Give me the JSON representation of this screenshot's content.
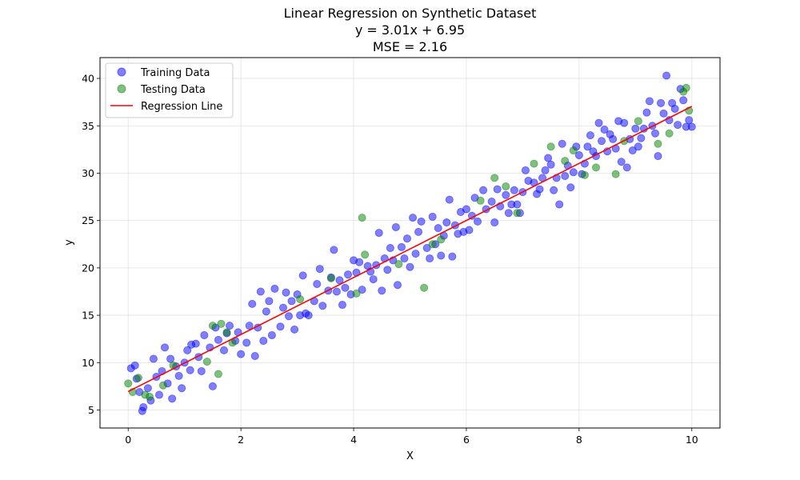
{
  "chart_data": {
    "type": "scatter",
    "title_lines": [
      "Linear Regression on Synthetic Dataset",
      "y = 3.01x + 6.95",
      "MSE = 2.16"
    ],
    "xlabel": "X",
    "ylabel": "y",
    "xlim": [
      -0.5,
      10.5
    ],
    "ylim": [
      3.1,
      42.2
    ],
    "xticks": [
      0,
      2,
      4,
      6,
      8,
      10
    ],
    "yticks": [
      5,
      10,
      15,
      20,
      25,
      30,
      35,
      40
    ],
    "grid": true,
    "legend_position": "upper-left",
    "regression": {
      "slope": 3.01,
      "intercept": 6.95,
      "x_range": [
        0,
        10
      ]
    },
    "series": [
      {
        "name": "Training Data",
        "kind": "scatter",
        "color": "#0000ff",
        "points": [
          [
            0.05,
            9.4
          ],
          [
            0.12,
            9.7
          ],
          [
            0.15,
            8.3
          ],
          [
            0.2,
            6.9
          ],
          [
            0.25,
            4.9
          ],
          [
            0.27,
            5.3
          ],
          [
            0.35,
            7.3
          ],
          [
            0.4,
            6.0
          ],
          [
            0.45,
            10.4
          ],
          [
            0.5,
            8.5
          ],
          [
            0.55,
            6.6
          ],
          [
            0.6,
            9.1
          ],
          [
            0.65,
            11.6
          ],
          [
            0.7,
            7.8
          ],
          [
            0.75,
            10.4
          ],
          [
            0.78,
            6.2
          ],
          [
            0.85,
            9.6
          ],
          [
            0.9,
            8.6
          ],
          [
            0.95,
            7.3
          ],
          [
            1.0,
            10.0
          ],
          [
            1.05,
            11.3
          ],
          [
            1.1,
            9.2
          ],
          [
            1.12,
            11.9
          ],
          [
            1.2,
            12.0
          ],
          [
            1.25,
            10.6
          ],
          [
            1.3,
            9.1
          ],
          [
            1.35,
            12.9
          ],
          [
            1.45,
            11.6
          ],
          [
            1.5,
            7.5
          ],
          [
            1.55,
            13.7
          ],
          [
            1.6,
            12.4
          ],
          [
            1.7,
            11.3
          ],
          [
            1.75,
            13.1
          ],
          [
            1.8,
            13.9
          ],
          [
            1.9,
            12.3
          ],
          [
            1.95,
            13.2
          ],
          [
            2.0,
            10.9
          ],
          [
            2.1,
            12.1
          ],
          [
            2.15,
            13.9
          ],
          [
            2.2,
            16.2
          ],
          [
            2.25,
            10.7
          ],
          [
            2.3,
            13.7
          ],
          [
            2.35,
            17.5
          ],
          [
            2.4,
            12.3
          ],
          [
            2.45,
            15.4
          ],
          [
            2.5,
            16.5
          ],
          [
            2.55,
            12.9
          ],
          [
            2.6,
            17.8
          ],
          [
            2.7,
            13.8
          ],
          [
            2.75,
            15.8
          ],
          [
            2.8,
            17.4
          ],
          [
            2.85,
            14.9
          ],
          [
            2.9,
            16.5
          ],
          [
            2.95,
            13.5
          ],
          [
            3.0,
            17.2
          ],
          [
            3.05,
            15.0
          ],
          [
            3.1,
            19.2
          ],
          [
            3.15,
            15.2
          ],
          [
            3.2,
            15.0
          ],
          [
            3.3,
            16.5
          ],
          [
            3.35,
            18.3
          ],
          [
            3.4,
            19.9
          ],
          [
            3.45,
            16.0
          ],
          [
            3.55,
            17.6
          ],
          [
            3.6,
            19.0
          ],
          [
            3.65,
            21.9
          ],
          [
            3.7,
            17.5
          ],
          [
            3.75,
            18.7
          ],
          [
            3.8,
            16.1
          ],
          [
            3.85,
            17.9
          ],
          [
            3.9,
            19.3
          ],
          [
            3.95,
            17.2
          ],
          [
            4.0,
            20.8
          ],
          [
            4.05,
            19.5
          ],
          [
            4.1,
            20.6
          ],
          [
            4.15,
            17.7
          ],
          [
            4.25,
            20.2
          ],
          [
            4.3,
            19.6
          ],
          [
            4.35,
            18.8
          ],
          [
            4.4,
            20.3
          ],
          [
            4.45,
            23.7
          ],
          [
            4.5,
            17.6
          ],
          [
            4.55,
            21.0
          ],
          [
            4.6,
            19.8
          ],
          [
            4.65,
            22.1
          ],
          [
            4.7,
            20.8
          ],
          [
            4.75,
            24.3
          ],
          [
            4.78,
            18.2
          ],
          [
            4.85,
            22.2
          ],
          [
            4.9,
            21.0
          ],
          [
            4.95,
            23.1
          ],
          [
            5.0,
            20.1
          ],
          [
            5.05,
            25.3
          ],
          [
            5.1,
            21.5
          ],
          [
            5.15,
            23.8
          ],
          [
            5.2,
            24.9
          ],
          [
            5.3,
            22.1
          ],
          [
            5.35,
            21.0
          ],
          [
            5.4,
            25.4
          ],
          [
            5.45,
            22.5
          ],
          [
            5.5,
            24.2
          ],
          [
            5.55,
            21.3
          ],
          [
            5.6,
            23.4
          ],
          [
            5.65,
            24.8
          ],
          [
            5.7,
            27.2
          ],
          [
            5.75,
            21.2
          ],
          [
            5.8,
            24.5
          ],
          [
            5.85,
            23.6
          ],
          [
            5.9,
            25.9
          ],
          [
            5.95,
            23.8
          ],
          [
            6.0,
            26.2
          ],
          [
            6.05,
            24.0
          ],
          [
            6.1,
            25.5
          ],
          [
            6.15,
            27.4
          ],
          [
            6.2,
            24.9
          ],
          [
            6.3,
            28.2
          ],
          [
            6.35,
            26.2
          ],
          [
            6.45,
            27.0
          ],
          [
            6.5,
            24.8
          ],
          [
            6.55,
            28.3
          ],
          [
            6.6,
            26.5
          ],
          [
            6.7,
            27.7
          ],
          [
            6.75,
            25.8
          ],
          [
            6.8,
            26.7
          ],
          [
            6.85,
            28.2
          ],
          [
            6.9,
            26.7
          ],
          [
            6.95,
            25.8
          ],
          [
            7.0,
            28.0
          ],
          [
            7.05,
            30.3
          ],
          [
            7.1,
            29.2
          ],
          [
            7.2,
            29.0
          ],
          [
            7.25,
            27.8
          ],
          [
            7.3,
            28.3
          ],
          [
            7.35,
            29.5
          ],
          [
            7.4,
            30.3
          ],
          [
            7.45,
            31.6
          ],
          [
            7.5,
            30.9
          ],
          [
            7.55,
            28.2
          ],
          [
            7.6,
            29.5
          ],
          [
            7.65,
            26.7
          ],
          [
            7.7,
            33.1
          ],
          [
            7.75,
            29.7
          ],
          [
            7.8,
            30.8
          ],
          [
            7.85,
            28.5
          ],
          [
            7.9,
            30.1
          ],
          [
            7.95,
            32.8
          ],
          [
            8.0,
            31.9
          ],
          [
            8.05,
            29.9
          ],
          [
            8.1,
            31.0
          ],
          [
            8.15,
            32.8
          ],
          [
            8.2,
            34.0
          ],
          [
            8.25,
            32.3
          ],
          [
            8.3,
            31.8
          ],
          [
            8.35,
            35.3
          ],
          [
            8.4,
            33.4
          ],
          [
            8.45,
            34.6
          ],
          [
            8.5,
            32.3
          ],
          [
            8.55,
            34.1
          ],
          [
            8.6,
            33.6
          ],
          [
            8.65,
            32.6
          ],
          [
            8.7,
            35.5
          ],
          [
            8.75,
            31.2
          ],
          [
            8.8,
            35.3
          ],
          [
            8.85,
            30.6
          ],
          [
            8.9,
            33.6
          ],
          [
            8.95,
            32.4
          ],
          [
            9.0,
            34.7
          ],
          [
            9.05,
            32.8
          ],
          [
            9.1,
            33.7
          ],
          [
            9.15,
            34.7
          ],
          [
            9.2,
            36.4
          ],
          [
            9.25,
            37.6
          ],
          [
            9.3,
            35.0
          ],
          [
            9.35,
            34.2
          ],
          [
            9.4,
            31.8
          ],
          [
            9.45,
            37.4
          ],
          [
            9.5,
            36.3
          ],
          [
            9.55,
            40.3
          ],
          [
            9.6,
            35.6
          ],
          [
            9.65,
            37.4
          ],
          [
            9.7,
            36.8
          ],
          [
            9.75,
            35.1
          ],
          [
            9.8,
            38.9
          ],
          [
            9.85,
            37.7
          ],
          [
            9.9,
            34.9
          ],
          [
            9.95,
            35.6
          ],
          [
            10.0,
            34.9
          ]
        ]
      },
      {
        "name": "Testing Data",
        "kind": "scatter",
        "color": "#008000",
        "points": [
          [
            0.0,
            7.8
          ],
          [
            0.08,
            6.9
          ],
          [
            0.18,
            8.4
          ],
          [
            0.3,
            6.6
          ],
          [
            0.38,
            6.4
          ],
          [
            0.62,
            7.6
          ],
          [
            0.8,
            9.7
          ],
          [
            1.4,
            10.1
          ],
          [
            1.5,
            13.9
          ],
          [
            1.6,
            8.8
          ],
          [
            1.65,
            14.1
          ],
          [
            1.75,
            13.2
          ],
          [
            1.85,
            12.1
          ],
          [
            3.05,
            16.7
          ],
          [
            3.6,
            18.9
          ],
          [
            4.05,
            17.3
          ],
          [
            4.15,
            25.3
          ],
          [
            4.2,
            21.4
          ],
          [
            4.8,
            20.4
          ],
          [
            5.25,
            17.9
          ],
          [
            5.4,
            22.5
          ],
          [
            5.55,
            23.0
          ],
          [
            6.25,
            27.1
          ],
          [
            6.5,
            29.5
          ],
          [
            6.7,
            28.6
          ],
          [
            6.9,
            25.8
          ],
          [
            7.2,
            31.0
          ],
          [
            7.5,
            32.8
          ],
          [
            7.75,
            31.3
          ],
          [
            7.9,
            32.4
          ],
          [
            8.1,
            29.8
          ],
          [
            8.3,
            30.6
          ],
          [
            8.65,
            29.9
          ],
          [
            8.8,
            33.4
          ],
          [
            9.05,
            35.5
          ],
          [
            9.4,
            33.1
          ],
          [
            9.6,
            34.2
          ],
          [
            9.85,
            38.6
          ],
          [
            9.9,
            39.0
          ],
          [
            9.95,
            36.6
          ]
        ]
      },
      {
        "name": "Regression Line",
        "kind": "line",
        "color": "#ff0000"
      }
    ]
  }
}
